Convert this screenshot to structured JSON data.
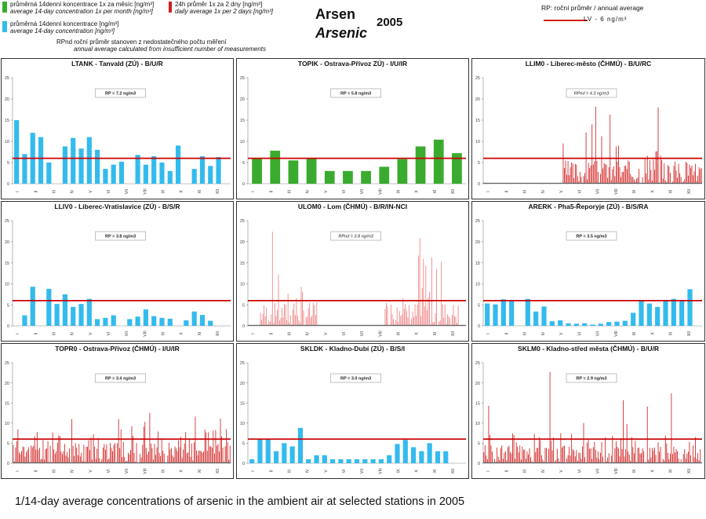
{
  "header": {
    "legend": {
      "green_line1": "průměrná 14denní koncentrace 1x za měsíc [ng/m³]",
      "green_line2": "average 14-day concentration 1x per month [ng/m³]",
      "blue_line1": "průměrná 14denní koncentrace [ng/m³]",
      "blue_line2": "average 14-day concentration  [ng/m³]",
      "red_line1": "24h průměr 1x za 2 dny [ng/m³]",
      "red_line2": "daily average 1x per 2 days [ng/m³]",
      "rpnd_line1": "RPnd  roční průměr stanoven z nedostatečného počtu měření",
      "rpnd_line2": "annual average calculated from insufficient number of measurements",
      "rp_line1": "RP: roční průměr / annual average",
      "lv_label": "LV    - 6 ng/m³"
    },
    "title_cz": "Arsen",
    "title_en": "Arsenic",
    "year": "2005",
    "colors": {
      "green": "#3aab2e",
      "blue": "#33bbee",
      "red": "#d11f1f",
      "dark_red": "#cc0000"
    }
  },
  "caption": "1/14-day average concentrations of arsenic in the ambient air at selected stations in 2005",
  "chart_data": [
    {
      "type": "bar",
      "title": "LTANK - Tanvald (ZÚ) - B/U/R",
      "annotation": "RP = 7.2 ng/m3",
      "annotation_style": "normal",
      "ylim": [
        0,
        25
      ],
      "yticks": [
        0,
        5,
        10,
        15,
        20,
        25
      ],
      "limit_value": 6,
      "months": [
        "I",
        "II",
        "III",
        "IV",
        "V",
        "VI",
        "VII",
        "VIII",
        "IX",
        "X",
        "XI",
        "XII"
      ],
      "series_color": "blue",
      "bar_count": 27,
      "values": [
        15,
        7,
        12,
        11,
        5,
        0,
        8.8,
        10.8,
        8.3,
        11,
        8,
        3.5,
        4.5,
        5.2,
        0,
        6.8,
        4.5,
        6.5,
        5,
        3,
        9,
        0,
        3.5,
        6.5,
        4.2,
        6.3,
        0
      ]
    },
    {
      "type": "bar",
      "title": "TOPIK - Ostrava-Přívoz ZÚ) - I/U/IR",
      "annotation": "RP = 5.8 ng/m3",
      "annotation_style": "normal",
      "ylim": [
        0,
        25
      ],
      "yticks": [
        0,
        5,
        10,
        15,
        20,
        25
      ],
      "limit_value": 6,
      "months": [
        "I",
        "II",
        "III",
        "IV",
        "V",
        "VI",
        "VII",
        "VIII",
        "IX",
        "X",
        "XI",
        "XII"
      ],
      "series_color": "green",
      "bar_count": 12,
      "values": [
        6,
        7.8,
        5.5,
        6,
        3,
        3,
        3,
        4,
        5.8,
        8.8,
        10.4,
        7.2
      ]
    },
    {
      "type": "bar",
      "title": "LLIM0 - Liberec-město (ČHMÚ) - B/U/RC",
      "annotation": "RPnd = 4.3 ng/m3",
      "annotation_style": "italic",
      "ylim": [
        0,
        25
      ],
      "yticks": [
        0,
        5,
        10,
        15,
        20,
        25
      ],
      "limit_value": 6,
      "months": [
        "I",
        "II",
        "III",
        "IV",
        "V",
        "VI",
        "VII",
        "VIII",
        "IX",
        "X",
        "XI",
        "XII"
      ],
      "series_color": "red",
      "bar_count": 182,
      "start_fraction": 0.36,
      "seed": 3,
      "base": 3.5,
      "peak": 19
    },
    {
      "type": "bar",
      "title": "LLIV0 - Liberec-Vratislavice (ZÚ) - B/S/R",
      "annotation": "RP = 3.8 ng/m3",
      "annotation_style": "normal",
      "ylim": [
        0,
        25
      ],
      "yticks": [
        0,
        5,
        10,
        15,
        20,
        25
      ],
      "limit_value": 6,
      "months": [
        "I",
        "II",
        "III",
        "IV",
        "V",
        "VI",
        "VII",
        "VIII",
        "IX",
        "X",
        "XI",
        "XII"
      ],
      "series_color": "blue",
      "bar_count": 27,
      "values": [
        0,
        2.5,
        9.3,
        0,
        8.8,
        5.2,
        7.5,
        4.5,
        5.2,
        6.4,
        1.6,
        1.9,
        2.5,
        0,
        1.6,
        2.2,
        3.9,
        2.3,
        1.9,
        1.7,
        0,
        1.3,
        3.4,
        2.6,
        1.2,
        0,
        0
      ]
    },
    {
      "type": "bar",
      "title": "ULOM0 - Lom (ČHMÚ) - B/R/IN-NCI",
      "annotation": "RPnd = 3.8 ng/m3",
      "annotation_style": "italic",
      "ylim": [
        0,
        25
      ],
      "yticks": [
        0,
        5,
        10,
        15,
        20,
        25
      ],
      "limit_value": 6,
      "months": [
        "I",
        "II",
        "III",
        "IV",
        "V",
        "VI",
        "VII",
        "VIII",
        "IX",
        "X",
        "XI",
        "XII"
      ],
      "series_color": "lightred",
      "bar_count": 182,
      "segments": [
        [
          0.05,
          0.32
        ],
        [
          0.62,
          0.97
        ]
      ],
      "seed": 7,
      "base": 3.5,
      "peak": 23
    },
    {
      "type": "bar",
      "title": "ARERK - Pha5-Řeporyje (ZÚ) - B/S/RA",
      "annotation": "RP = 3.5 ng/m3",
      "annotation_style": "normal",
      "ylim": [
        0,
        25
      ],
      "yticks": [
        0,
        5,
        10,
        15,
        20,
        25
      ],
      "limit_value": 6,
      "months": [
        "I",
        "II",
        "III",
        "IV",
        "V",
        "VI",
        "VII",
        "VIII",
        "IX",
        "X",
        "XI",
        "XII"
      ],
      "series_color": "blue",
      "bar_count": 27,
      "values": [
        5.3,
        5.1,
        6.3,
        6.1,
        0,
        6.4,
        3.4,
        4.6,
        1.1,
        1.3,
        0.6,
        0.5,
        0.6,
        0.3,
        0.5,
        0.9,
        1.0,
        1.2,
        3.1,
        5.9,
        5.3,
        4.5,
        6.1,
        6.4,
        6.0,
        8.7,
        0
      ]
    },
    {
      "type": "bar",
      "title": "TOPR0 - Ostrava-Přívoz (ČHMÚ) - I/U/IR",
      "annotation": "RP = 3.4 ng/m3",
      "annotation_style": "normal",
      "ylim": [
        0,
        25
      ],
      "yticks": [
        0,
        5,
        10,
        15,
        20,
        25
      ],
      "limit_value": 6,
      "months": [
        "I",
        "II",
        "III",
        "IV",
        "V",
        "VI",
        "VII",
        "VIII",
        "IX",
        "X",
        "XI",
        "XII"
      ],
      "series_color": "red",
      "bar_count": 182,
      "segments": [
        [
          0.0,
          1.0
        ]
      ],
      "seed": 11,
      "base": 3.2,
      "peak": 12.5
    },
    {
      "type": "bar",
      "title": "SKLDK - Kladno-Dubí (ZÚ) - B/S/I",
      "annotation": "RP = 3.0 ng/m3",
      "annotation_style": "normal",
      "ylim": [
        0,
        25
      ],
      "yticks": [
        0,
        5,
        10,
        15,
        20,
        25
      ],
      "limit_value": 6,
      "months": [
        "I",
        "II",
        "III",
        "IV",
        "V",
        "VI",
        "VII",
        "VIII",
        "IX",
        "X",
        "XI",
        "XII"
      ],
      "series_color": "blue",
      "bar_count": 27,
      "values": [
        1,
        6,
        6,
        3,
        5,
        4.2,
        8.8,
        1,
        2,
        2,
        1,
        1,
        1,
        1,
        1,
        1,
        1,
        2,
        4.8,
        5.8,
        4,
        3,
        5,
        3,
        3,
        0,
        0
      ]
    },
    {
      "type": "bar",
      "title": "SKLM0 - Kladno-střed města (ČHMÚ) - B/U/R",
      "annotation": "RP = 2.9 ng/m3",
      "annotation_style": "normal",
      "ylim": [
        0,
        25
      ],
      "yticks": [
        0,
        5,
        10,
        15,
        20,
        25
      ],
      "limit_value": 6,
      "months": [
        "I",
        "II",
        "III",
        "IV",
        "V",
        "VI",
        "VII",
        "VIII",
        "IX",
        "X",
        "XI",
        "XII"
      ],
      "series_color": "red",
      "bar_count": 182,
      "segments": [
        [
          0.0,
          1.0
        ]
      ],
      "seed": 19,
      "base": 2.8,
      "peak": 24
    }
  ]
}
